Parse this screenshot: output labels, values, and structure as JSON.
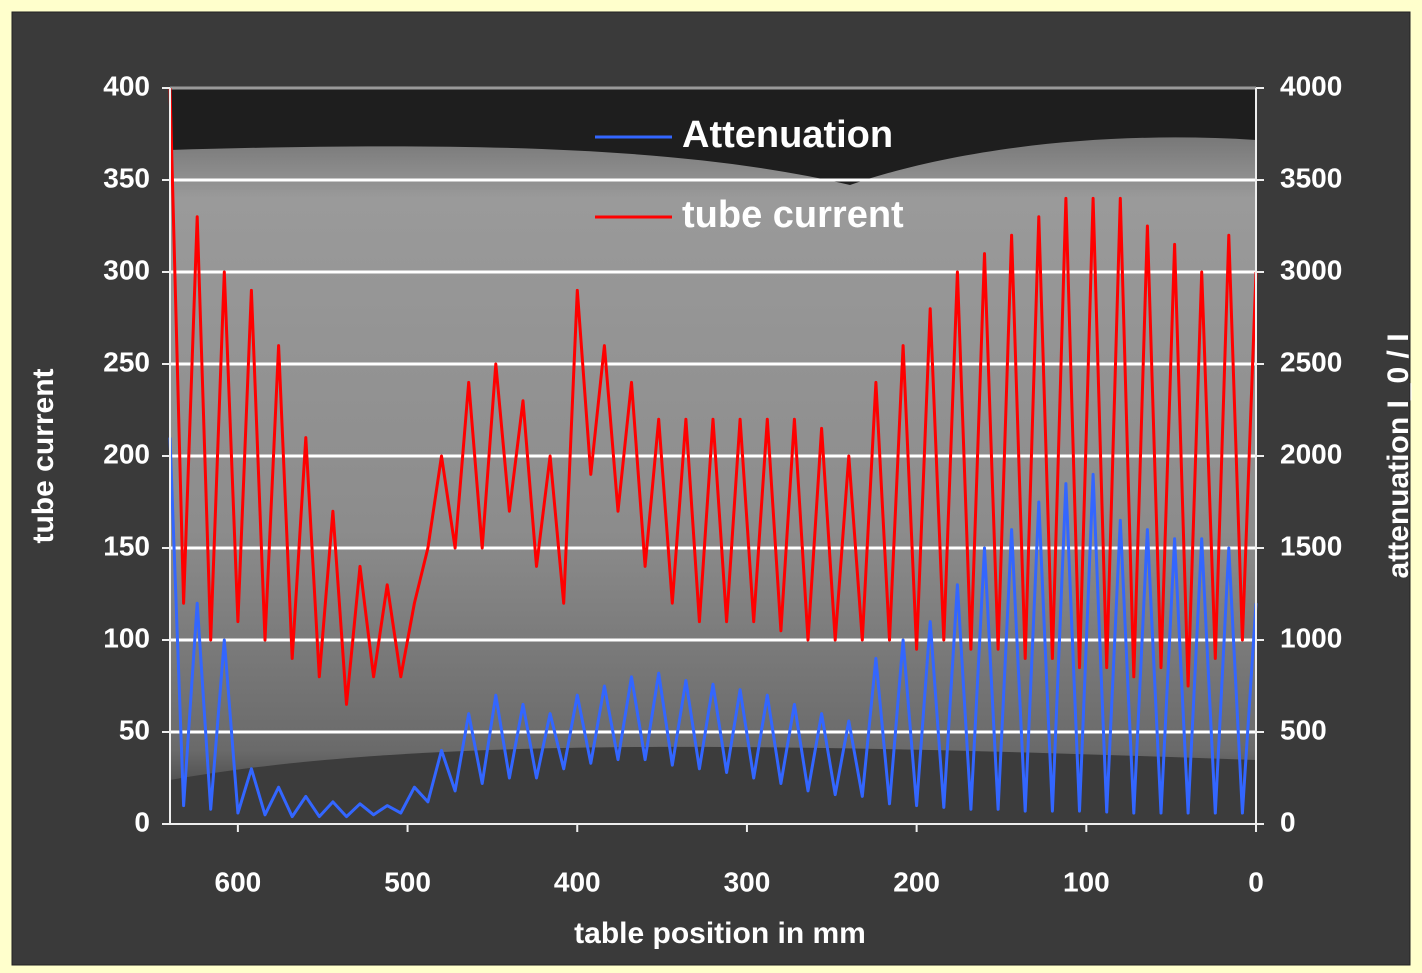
{
  "chart_data": {
    "type": "line",
    "x_label": "table position in mm",
    "y_label": "tube current",
    "y2_label": "attenuation I_0 / I",
    "x": [
      640,
      632,
      624,
      616,
      608,
      600,
      592,
      584,
      576,
      568,
      560,
      552,
      544,
      536,
      528,
      520,
      512,
      504,
      496,
      488,
      480,
      472,
      464,
      456,
      448,
      440,
      432,
      424,
      416,
      408,
      400,
      392,
      384,
      376,
      368,
      360,
      352,
      344,
      336,
      328,
      320,
      312,
      304,
      296,
      288,
      280,
      272,
      264,
      256,
      248,
      240,
      232,
      224,
      216,
      208,
      200,
      192,
      184,
      176,
      168,
      160,
      152,
      144,
      136,
      128,
      120,
      112,
      104,
      96,
      88,
      80,
      72,
      64,
      56,
      48,
      40,
      32,
      24,
      16,
      8,
      0
    ],
    "series": [
      {
        "name": "Attenuation",
        "color": "#3366ff",
        "axis": "y2",
        "values": [
          2100,
          100,
          1200,
          80,
          1000,
          60,
          300,
          50,
          200,
          40,
          150,
          40,
          120,
          40,
          110,
          50,
          100,
          60,
          200,
          120,
          400,
          180,
          600,
          220,
          700,
          250,
          650,
          250,
          600,
          300,
          700,
          330,
          750,
          350,
          800,
          350,
          820,
          320,
          780,
          300,
          760,
          280,
          730,
          250,
          700,
          220,
          650,
          180,
          600,
          160,
          560,
          150,
          900,
          110,
          1000,
          100,
          1100,
          90,
          1300,
          80,
          1500,
          80,
          1600,
          70,
          1750,
          70,
          1850,
          70,
          1900,
          65,
          1650,
          60,
          1600,
          60,
          1550,
          60,
          1550,
          60,
          1500,
          60,
          1200
        ]
      },
      {
        "name": "tube current",
        "color": "#ff0000",
        "values": [
          400,
          120,
          330,
          100,
          300,
          110,
          290,
          100,
          260,
          90,
          210,
          80,
          170,
          65,
          140,
          80,
          130,
          80,
          120,
          150,
          200,
          150,
          240,
          150,
          250,
          170,
          230,
          140,
          200,
          120,
          290,
          190,
          260,
          170,
          240,
          140,
          220,
          120,
          220,
          110,
          220,
          110,
          220,
          110,
          220,
          105,
          220,
          100,
          215,
          100,
          200,
          100,
          240,
          100,
          260,
          95,
          280,
          100,
          300,
          95,
          310,
          95,
          320,
          90,
          330,
          90,
          340,
          85,
          340,
          85,
          340,
          80,
          325,
          85,
          315,
          75,
          300,
          90,
          320,
          100,
          300
        ]
      }
    ],
    "xlim": [
      640,
      0
    ],
    "xticks": [
      600,
      500,
      400,
      300,
      200,
      100,
      0
    ],
    "ylim": [
      0,
      400
    ],
    "yticks": [
      0,
      50,
      100,
      150,
      200,
      250,
      300,
      350,
      400
    ],
    "y2lim": [
      0,
      4000
    ],
    "y2ticks": [
      0,
      500,
      1000,
      1500,
      2000,
      2500,
      3000,
      3500,
      4000
    ],
    "grid": true
  }
}
